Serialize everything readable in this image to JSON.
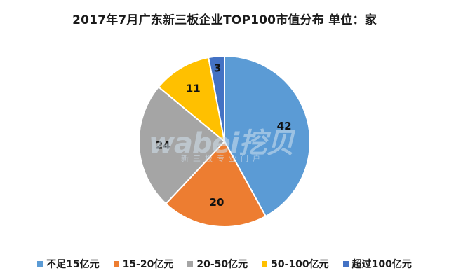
{
  "chart_data": {
    "type": "pie",
    "title": "2017年7月广东新三板企业TOP100市值分布   单位：家",
    "categories": [
      "不足15亿元",
      "15-20亿元",
      "20-50亿元",
      "50-100亿元",
      "超过100亿元"
    ],
    "values": [
      42,
      20,
      24,
      11,
      3
    ],
    "colors": [
      "#5B9BD5",
      "#ED7D31",
      "#A5A5A5",
      "#FFC000",
      "#4472C4"
    ],
    "legend_position": "bottom",
    "start_angle": "top, clockwise"
  },
  "watermark": {
    "brand": "wabei挖贝",
    "subtitle": "新三板专业门户"
  }
}
